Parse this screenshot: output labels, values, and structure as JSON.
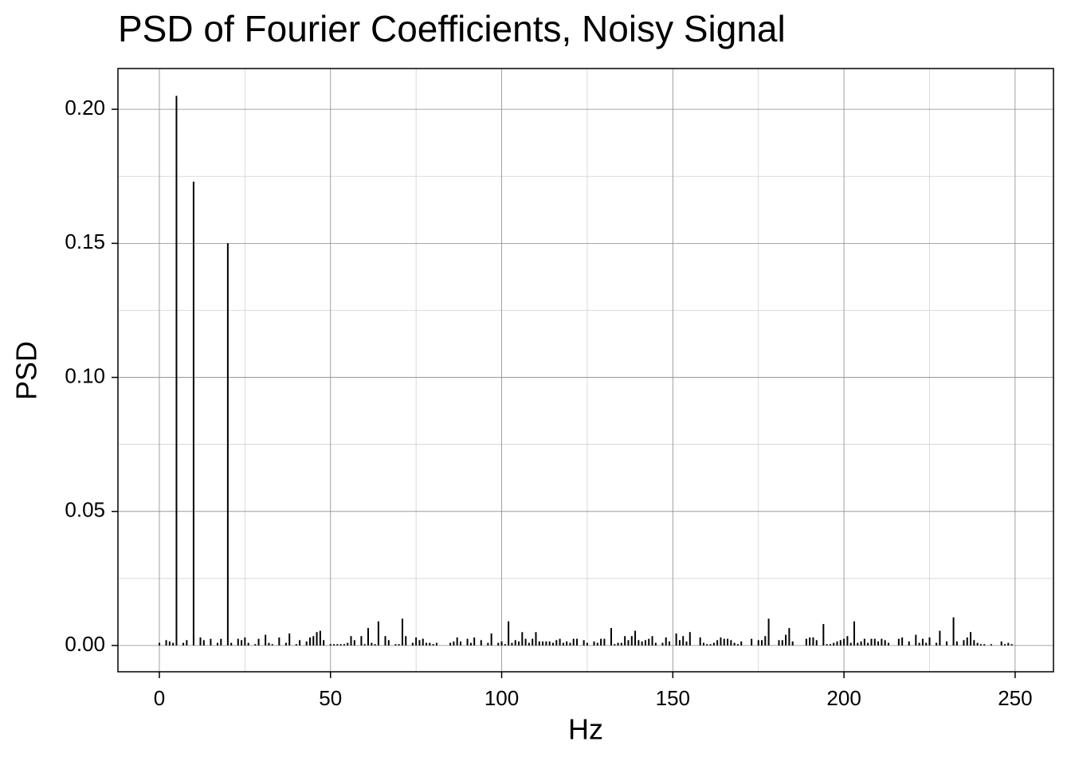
{
  "chart_data": {
    "type": "bar",
    "title": "PSD of Fourier Coefficients, Noisy Signal",
    "x_label": "Hz",
    "y_label": "PSD",
    "color": "#000000",
    "grid": true,
    "xlim": [
      -12.1,
      261.2
    ],
    "ylim": [
      -0.0098,
      0.2152
    ],
    "xticks": [
      0,
      50,
      100,
      150,
      200,
      250
    ],
    "yticks": [
      {
        "value": 0,
        "label": "0.00"
      },
      {
        "value": 0.05,
        "label": "0.05"
      },
      {
        "value": 0.1,
        "label": "0.10"
      },
      {
        "value": 0.15,
        "label": "0.15"
      },
      {
        "value": 0.2,
        "label": "0.20"
      }
    ],
    "x_minor_ticks": [
      25,
      75,
      125,
      175,
      225
    ],
    "y_minor_ticks": [
      0.025,
      0.075,
      0.125,
      0.175
    ],
    "x": [
      0,
      1,
      2,
      3,
      4,
      5,
      6,
      7,
      8,
      9,
      10,
      11,
      12,
      13,
      14,
      15,
      16,
      17,
      18,
      19,
      20,
      21,
      22,
      23,
      24,
      25,
      26,
      27,
      28,
      29,
      30,
      31,
      32,
      33,
      34,
      35,
      36,
      37,
      38,
      39,
      40,
      41,
      42,
      43,
      44,
      45,
      46,
      47,
      48,
      49,
      50,
      51,
      52,
      53,
      54,
      55,
      56,
      57,
      58,
      59,
      60,
      61,
      62,
      63,
      64,
      65,
      66,
      67,
      68,
      69,
      70,
      71,
      72,
      73,
      74,
      75,
      76,
      77,
      78,
      79,
      80,
      81,
      82,
      83,
      84,
      85,
      86,
      87,
      88,
      89,
      90,
      91,
      92,
      93,
      94,
      95,
      96,
      97,
      98,
      99,
      100,
      101,
      102,
      103,
      104,
      105,
      106,
      107,
      108,
      109,
      110,
      111,
      112,
      113,
      114,
      115,
      116,
      117,
      118,
      119,
      120,
      121,
      122,
      123,
      124,
      125,
      126,
      127,
      128,
      129,
      130,
      131,
      132,
      133,
      134,
      135,
      136,
      137,
      138,
      139,
      140,
      141,
      142,
      143,
      144,
      145,
      146,
      147,
      148,
      149,
      150,
      151,
      152,
      153,
      154,
      155,
      156,
      157,
      158,
      159,
      160,
      161,
      162,
      163,
      164,
      165,
      166,
      167,
      168,
      169,
      170,
      171,
      172,
      173,
      174,
      175,
      176,
      177,
      178,
      179,
      180,
      181,
      182,
      183,
      184,
      185,
      186,
      187,
      188,
      189,
      190,
      191,
      192,
      193,
      194,
      195,
      196,
      197,
      198,
      199,
      200,
      201,
      202,
      203,
      204,
      205,
      206,
      207,
      208,
      209,
      210,
      211,
      212,
      213,
      214,
      215,
      216,
      217,
      218,
      219,
      220,
      221,
      222,
      223,
      224,
      225,
      226,
      227,
      228,
      229,
      230,
      231,
      232,
      233,
      234,
      235,
      236,
      237,
      238,
      239,
      240,
      241,
      242,
      243,
      244,
      245,
      246,
      247,
      248,
      249
    ],
    "values": [
      0.001,
      0,
      0.002,
      0.0015,
      0.001,
      0.205,
      0,
      0.001,
      0.002,
      0,
      0.173,
      0,
      0.003,
      0.002,
      0,
      0.0025,
      0,
      0.001,
      0.0025,
      0,
      0.15,
      0.001,
      0,
      0.0025,
      0.002,
      0.003,
      0.001,
      0,
      0.0005,
      0.0025,
      0,
      0.004,
      0.001,
      0.0005,
      0,
      0.003,
      0,
      0.001,
      0.0045,
      0,
      0.0005,
      0.002,
      0,
      0.0015,
      0.003,
      0.0035,
      0.005,
      0.0055,
      0.002,
      0,
      0.0005,
      0.0005,
      0.0005,
      0.0005,
      0.0005,
      0.001,
      0.0035,
      0.002,
      0,
      0.0035,
      0.0005,
      0.0065,
      0.001,
      0.0005,
      0.009,
      0,
      0.0035,
      0.002,
      0,
      0.0005,
      0.0005,
      0.01,
      0.0035,
      0,
      0.001,
      0.003,
      0.002,
      0.0025,
      0.001,
      0.001,
      0.0005,
      0.001,
      0,
      0,
      0,
      0.001,
      0.0015,
      0.003,
      0.0015,
      0,
      0.0025,
      0.001,
      0.003,
      0,
      0.002,
      0,
      0.001,
      0.0045,
      0,
      0.001,
      0.0015,
      0.0005,
      0.009,
      0.001,
      0.002,
      0.0015,
      0.005,
      0.0025,
      0.001,
      0.0025,
      0.005,
      0.0015,
      0.0015,
      0.0015,
      0.0015,
      0.001,
      0.002,
      0.0025,
      0.001,
      0.0015,
      0.001,
      0.0025,
      0.0025,
      0,
      0.002,
      0.001,
      0,
      0.0015,
      0.001,
      0.0025,
      0.0025,
      0,
      0.0065,
      0.0005,
      0.001,
      0.001,
      0.0035,
      0.002,
      0.0035,
      0.0055,
      0.002,
      0.0015,
      0.002,
      0.0025,
      0.0035,
      0.001,
      0,
      0.001,
      0.003,
      0.0015,
      0,
      0.0045,
      0.002,
      0.0035,
      0.0015,
      0.005,
      0,
      0,
      0.003,
      0.001,
      0.0005,
      0.0005,
      0.001,
      0.002,
      0.003,
      0.0025,
      0.0025,
      0.002,
      0.001,
      0.0005,
      0.0015,
      0,
      0,
      0.0025,
      0,
      0.002,
      0.002,
      0.0035,
      0.01,
      0,
      0,
      0.002,
      0.002,
      0.004,
      0.0065,
      0.0015,
      0,
      0,
      0,
      0.0025,
      0.003,
      0.003,
      0.002,
      0,
      0.008,
      0.0005,
      0.0005,
      0.001,
      0.0015,
      0.002,
      0.0025,
      0.0035,
      0.001,
      0.009,
      0.001,
      0.0015,
      0.0025,
      0.001,
      0.0025,
      0.0025,
      0.0015,
      0.0025,
      0.002,
      0.001,
      0,
      0,
      0.0025,
      0.003,
      0,
      0.0015,
      0,
      0.004,
      0.001,
      0.0025,
      0.001,
      0.003,
      0,
      0.001,
      0.0055,
      0,
      0.0015,
      0,
      0.0105,
      0.0015,
      0,
      0.002,
      0.003,
      0.005,
      0.002,
      0.001,
      0.0005,
      0.0005,
      0,
      0.0005,
      0,
      0,
      0.0015,
      0.0005,
      0.001,
      0.0005
    ]
  }
}
